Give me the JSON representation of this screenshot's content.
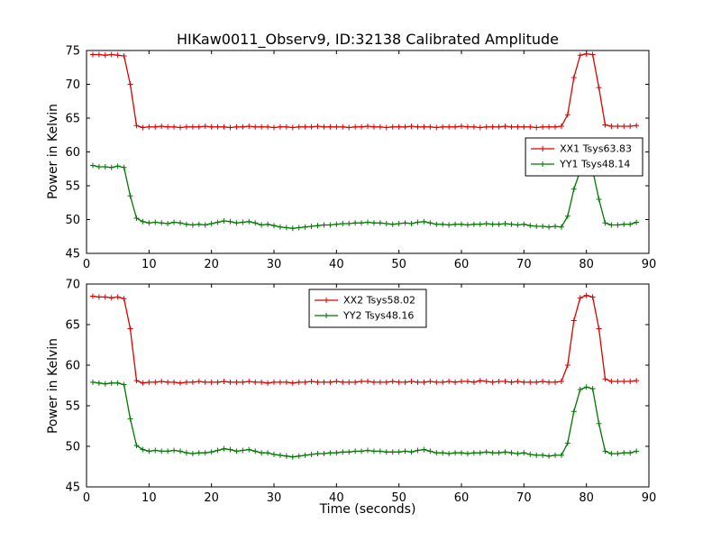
{
  "title": "HIKaw0011_Observ9, ID:32138 Calibrated Amplitude",
  "background": "#ffffff",
  "chart_data": [
    {
      "type": "line",
      "ylabel": "Power in Kelvin",
      "xlabel": "",
      "xlim": [
        0,
        90
      ],
      "ylim": [
        45,
        75
      ],
      "xticks": [
        0,
        10,
        20,
        30,
        40,
        50,
        60,
        70,
        80,
        90
      ],
      "yticks": [
        45,
        50,
        55,
        60,
        65,
        70,
        75
      ],
      "grid": false,
      "legend_position": "center-right",
      "x": [
        1,
        2,
        3,
        4,
        5,
        6,
        7,
        8,
        9,
        10,
        11,
        12,
        13,
        14,
        15,
        16,
        17,
        18,
        19,
        20,
        21,
        22,
        23,
        24,
        25,
        26,
        27,
        28,
        29,
        30,
        31,
        32,
        33,
        34,
        35,
        36,
        37,
        38,
        39,
        40,
        41,
        42,
        43,
        44,
        45,
        46,
        47,
        48,
        49,
        50,
        51,
        52,
        53,
        54,
        55,
        56,
        57,
        58,
        59,
        60,
        61,
        62,
        63,
        64,
        65,
        66,
        67,
        68,
        69,
        70,
        71,
        72,
        73,
        74,
        75,
        76,
        77,
        78,
        79,
        80,
        81,
        82,
        83,
        84,
        85,
        86,
        87,
        88
      ],
      "series": [
        {
          "name": "XX1 Tsys63.83",
          "color": "#dd0000",
          "marker": "plus",
          "values": [
            74.4,
            74.4,
            74.3,
            74.4,
            74.3,
            74.2,
            70.0,
            63.9,
            63.6,
            63.7,
            63.7,
            63.8,
            63.7,
            63.7,
            63.6,
            63.7,
            63.7,
            63.7,
            63.8,
            63.7,
            63.7,
            63.7,
            63.6,
            63.7,
            63.7,
            63.8,
            63.7,
            63.7,
            63.7,
            63.6,
            63.7,
            63.7,
            63.6,
            63.7,
            63.7,
            63.7,
            63.8,
            63.7,
            63.7,
            63.7,
            63.7,
            63.6,
            63.7,
            63.7,
            63.8,
            63.7,
            63.7,
            63.6,
            63.7,
            63.7,
            63.7,
            63.8,
            63.7,
            63.7,
            63.7,
            63.6,
            63.7,
            63.7,
            63.7,
            63.8,
            63.7,
            63.7,
            63.6,
            63.7,
            63.7,
            63.7,
            63.8,
            63.7,
            63.7,
            63.7,
            63.7,
            63.6,
            63.7,
            63.7,
            63.7,
            63.8,
            65.5,
            71.0,
            74.3,
            74.5,
            74.4,
            69.5,
            64.0,
            63.8,
            63.8,
            63.8,
            63.8,
            63.9
          ]
        },
        {
          "name": "YY1 Tsys48.14",
          "color": "#007700",
          "marker": "plus",
          "values": [
            58.0,
            57.8,
            57.8,
            57.7,
            57.9,
            57.7,
            53.5,
            50.2,
            49.7,
            49.5,
            49.6,
            49.5,
            49.4,
            49.6,
            49.5,
            49.3,
            49.2,
            49.3,
            49.2,
            49.4,
            49.6,
            49.8,
            49.7,
            49.5,
            49.6,
            49.7,
            49.5,
            49.2,
            49.3,
            49.1,
            48.9,
            48.8,
            48.7,
            48.8,
            48.9,
            49.0,
            49.1,
            49.2,
            49.2,
            49.3,
            49.4,
            49.4,
            49.5,
            49.5,
            49.6,
            49.5,
            49.5,
            49.4,
            49.3,
            49.4,
            49.5,
            49.4,
            49.6,
            49.7,
            49.5,
            49.3,
            49.3,
            49.2,
            49.3,
            49.3,
            49.2,
            49.3,
            49.3,
            49.4,
            49.3,
            49.3,
            49.4,
            49.3,
            49.2,
            49.3,
            49.1,
            49.0,
            49.0,
            48.9,
            49.0,
            48.9,
            50.5,
            54.5,
            57.2,
            57.5,
            57.3,
            53.0,
            49.5,
            49.2,
            49.2,
            49.3,
            49.3,
            49.6
          ]
        }
      ]
    },
    {
      "type": "line",
      "ylabel": "Power in Kelvin",
      "xlabel": "Time (seconds)",
      "xlim": [
        0,
        90
      ],
      "ylim": [
        45,
        70
      ],
      "xticks": [
        0,
        10,
        20,
        30,
        40,
        50,
        60,
        70,
        80,
        90
      ],
      "yticks": [
        45,
        50,
        55,
        60,
        65,
        70
      ],
      "grid": false,
      "legend_position": "top-center",
      "x": [
        1,
        2,
        3,
        4,
        5,
        6,
        7,
        8,
        9,
        10,
        11,
        12,
        13,
        14,
        15,
        16,
        17,
        18,
        19,
        20,
        21,
        22,
        23,
        24,
        25,
        26,
        27,
        28,
        29,
        30,
        31,
        32,
        33,
        34,
        35,
        36,
        37,
        38,
        39,
        40,
        41,
        42,
        43,
        44,
        45,
        46,
        47,
        48,
        49,
        50,
        51,
        52,
        53,
        54,
        55,
        56,
        57,
        58,
        59,
        60,
        61,
        62,
        63,
        64,
        65,
        66,
        67,
        68,
        69,
        70,
        71,
        72,
        73,
        74,
        75,
        76,
        77,
        78,
        79,
        80,
        81,
        82,
        83,
        84,
        85,
        86,
        87,
        88
      ],
      "series": [
        {
          "name": "XX2 Tsys58.02",
          "color": "#dd0000",
          "marker": "plus",
          "values": [
            68.5,
            68.4,
            68.4,
            68.3,
            68.4,
            68.2,
            64.5,
            58.1,
            57.8,
            57.9,
            57.9,
            58.0,
            57.9,
            57.9,
            57.8,
            57.9,
            57.9,
            58.0,
            57.9,
            57.9,
            57.9,
            58.0,
            57.9,
            57.9,
            57.9,
            58.0,
            57.9,
            57.9,
            57.8,
            57.9,
            57.9,
            57.9,
            57.8,
            57.9,
            57.9,
            58.0,
            57.9,
            57.9,
            57.9,
            58.0,
            57.9,
            57.9,
            57.9,
            58.0,
            58.0,
            57.9,
            57.9,
            57.9,
            58.0,
            57.9,
            57.9,
            58.0,
            57.9,
            57.9,
            58.0,
            57.9,
            57.9,
            58.0,
            57.9,
            58.0,
            58.0,
            57.9,
            58.1,
            58.0,
            57.9,
            58.0,
            58.0,
            57.9,
            58.0,
            57.9,
            57.9,
            57.9,
            58.0,
            57.9,
            57.9,
            58.0,
            60.0,
            65.5,
            68.3,
            68.6,
            68.4,
            64.5,
            58.3,
            58.0,
            58.0,
            58.0,
            58.0,
            58.1
          ]
        },
        {
          "name": "YY2 Tsys48.16",
          "color": "#007700",
          "marker": "plus",
          "values": [
            57.9,
            57.8,
            57.7,
            57.8,
            57.8,
            57.6,
            53.4,
            50.1,
            49.6,
            49.4,
            49.5,
            49.4,
            49.4,
            49.5,
            49.4,
            49.2,
            49.1,
            49.2,
            49.2,
            49.3,
            49.5,
            49.7,
            49.6,
            49.4,
            49.5,
            49.6,
            49.4,
            49.2,
            49.2,
            49.0,
            48.9,
            48.8,
            48.7,
            48.8,
            48.9,
            49.0,
            49.1,
            49.1,
            49.2,
            49.2,
            49.3,
            49.3,
            49.4,
            49.4,
            49.5,
            49.4,
            49.4,
            49.3,
            49.3,
            49.3,
            49.4,
            49.3,
            49.5,
            49.6,
            49.4,
            49.2,
            49.2,
            49.1,
            49.2,
            49.2,
            49.1,
            49.2,
            49.2,
            49.3,
            49.2,
            49.2,
            49.3,
            49.2,
            49.1,
            49.2,
            49.0,
            48.9,
            48.9,
            48.8,
            48.9,
            48.9,
            50.4,
            54.3,
            57.0,
            57.3,
            57.1,
            52.8,
            49.4,
            49.1,
            49.1,
            49.2,
            49.2,
            49.4
          ]
        }
      ]
    }
  ]
}
